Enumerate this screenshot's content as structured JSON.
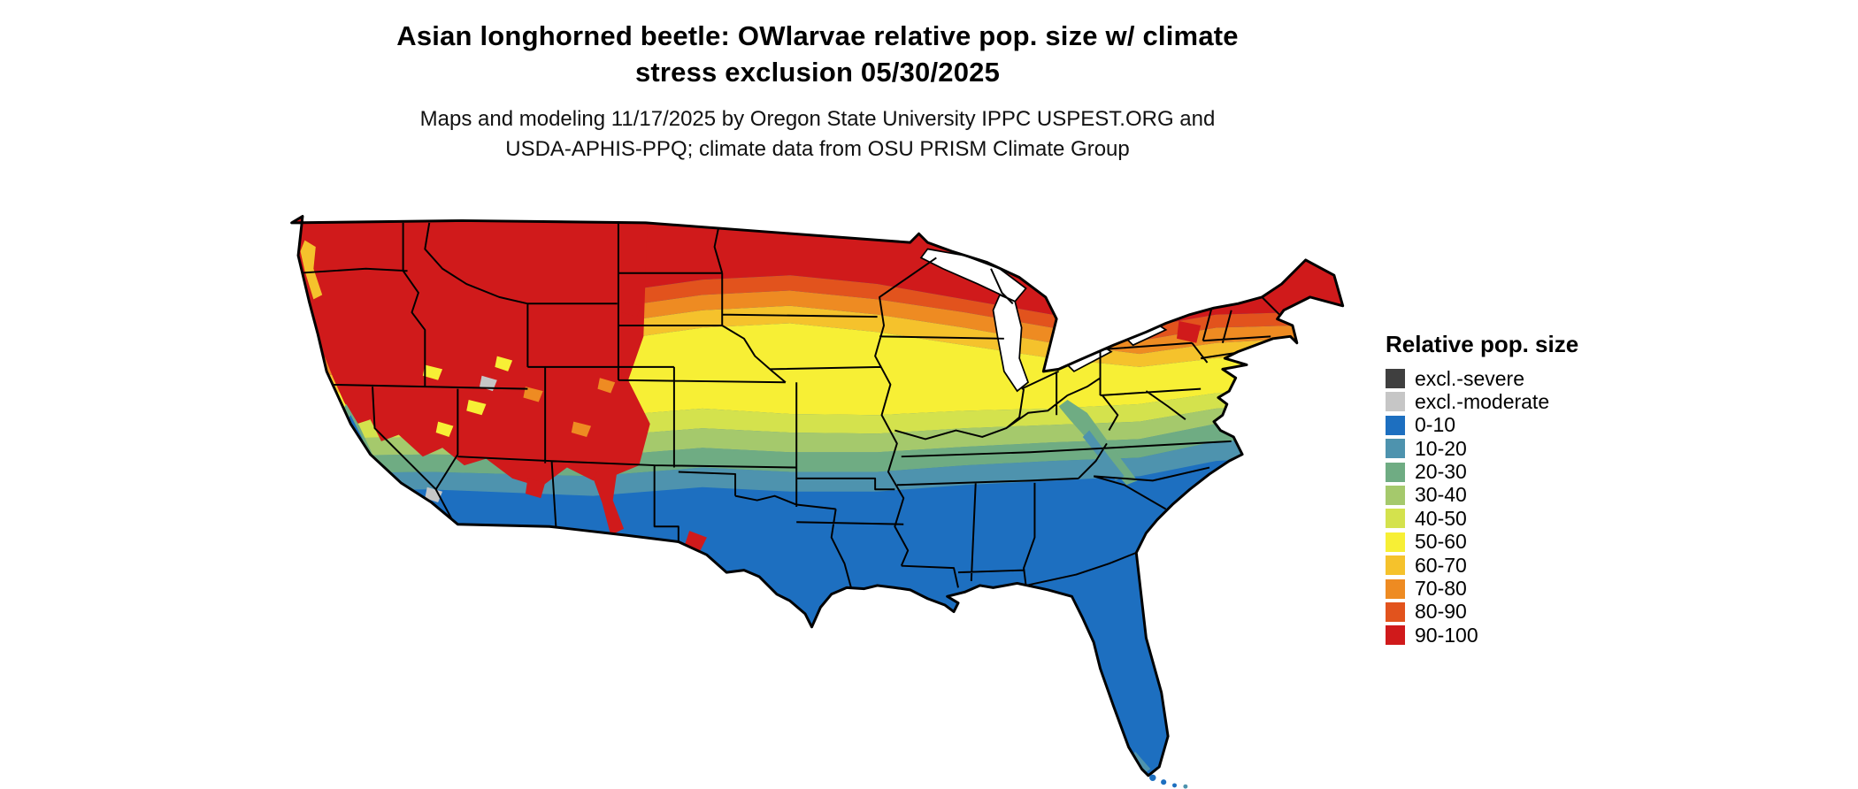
{
  "figure": {
    "title": {
      "line1": "Asian longhorned beetle: OWlarvae relative pop. size w/ climate",
      "line2": "stress exclusion 05/30/2025"
    },
    "subtitle": {
      "line1": "Maps and modeling 11/17/2025 by Oregon State University IPPC USPEST.ORG and",
      "line2": "USDA-APHIS-PPQ; climate data from OSU PRISM Climate Group"
    }
  },
  "legend": {
    "title": "Relative pop. size",
    "items": [
      {
        "key": "excl-severe",
        "label": "excl.-severe",
        "color": "#3f3f3f"
      },
      {
        "key": "excl-moderate",
        "label": "excl.-moderate",
        "color": "#c6c6c6"
      },
      {
        "key": "0-10",
        "label": "0-10",
        "color": "#1d6fc0"
      },
      {
        "key": "10-20",
        "label": "10-20",
        "color": "#4e93ae"
      },
      {
        "key": "20-30",
        "label": "20-30",
        "color": "#6fac83"
      },
      {
        "key": "30-40",
        "label": "30-40",
        "color": "#a5c96c"
      },
      {
        "key": "40-50",
        "label": "40-50",
        "color": "#d4e24d"
      },
      {
        "key": "50-60",
        "label": "50-60",
        "color": "#f7ef35"
      },
      {
        "key": "60-70",
        "label": "60-70",
        "color": "#f5c22c"
      },
      {
        "key": "70-80",
        "label": "70-80",
        "color": "#ee8b22"
      },
      {
        "key": "80-90",
        "label": "80-90",
        "color": "#e2531d"
      },
      {
        "key": "90-100",
        "label": "90-100",
        "color": "#d01a1b"
      }
    ]
  }
}
